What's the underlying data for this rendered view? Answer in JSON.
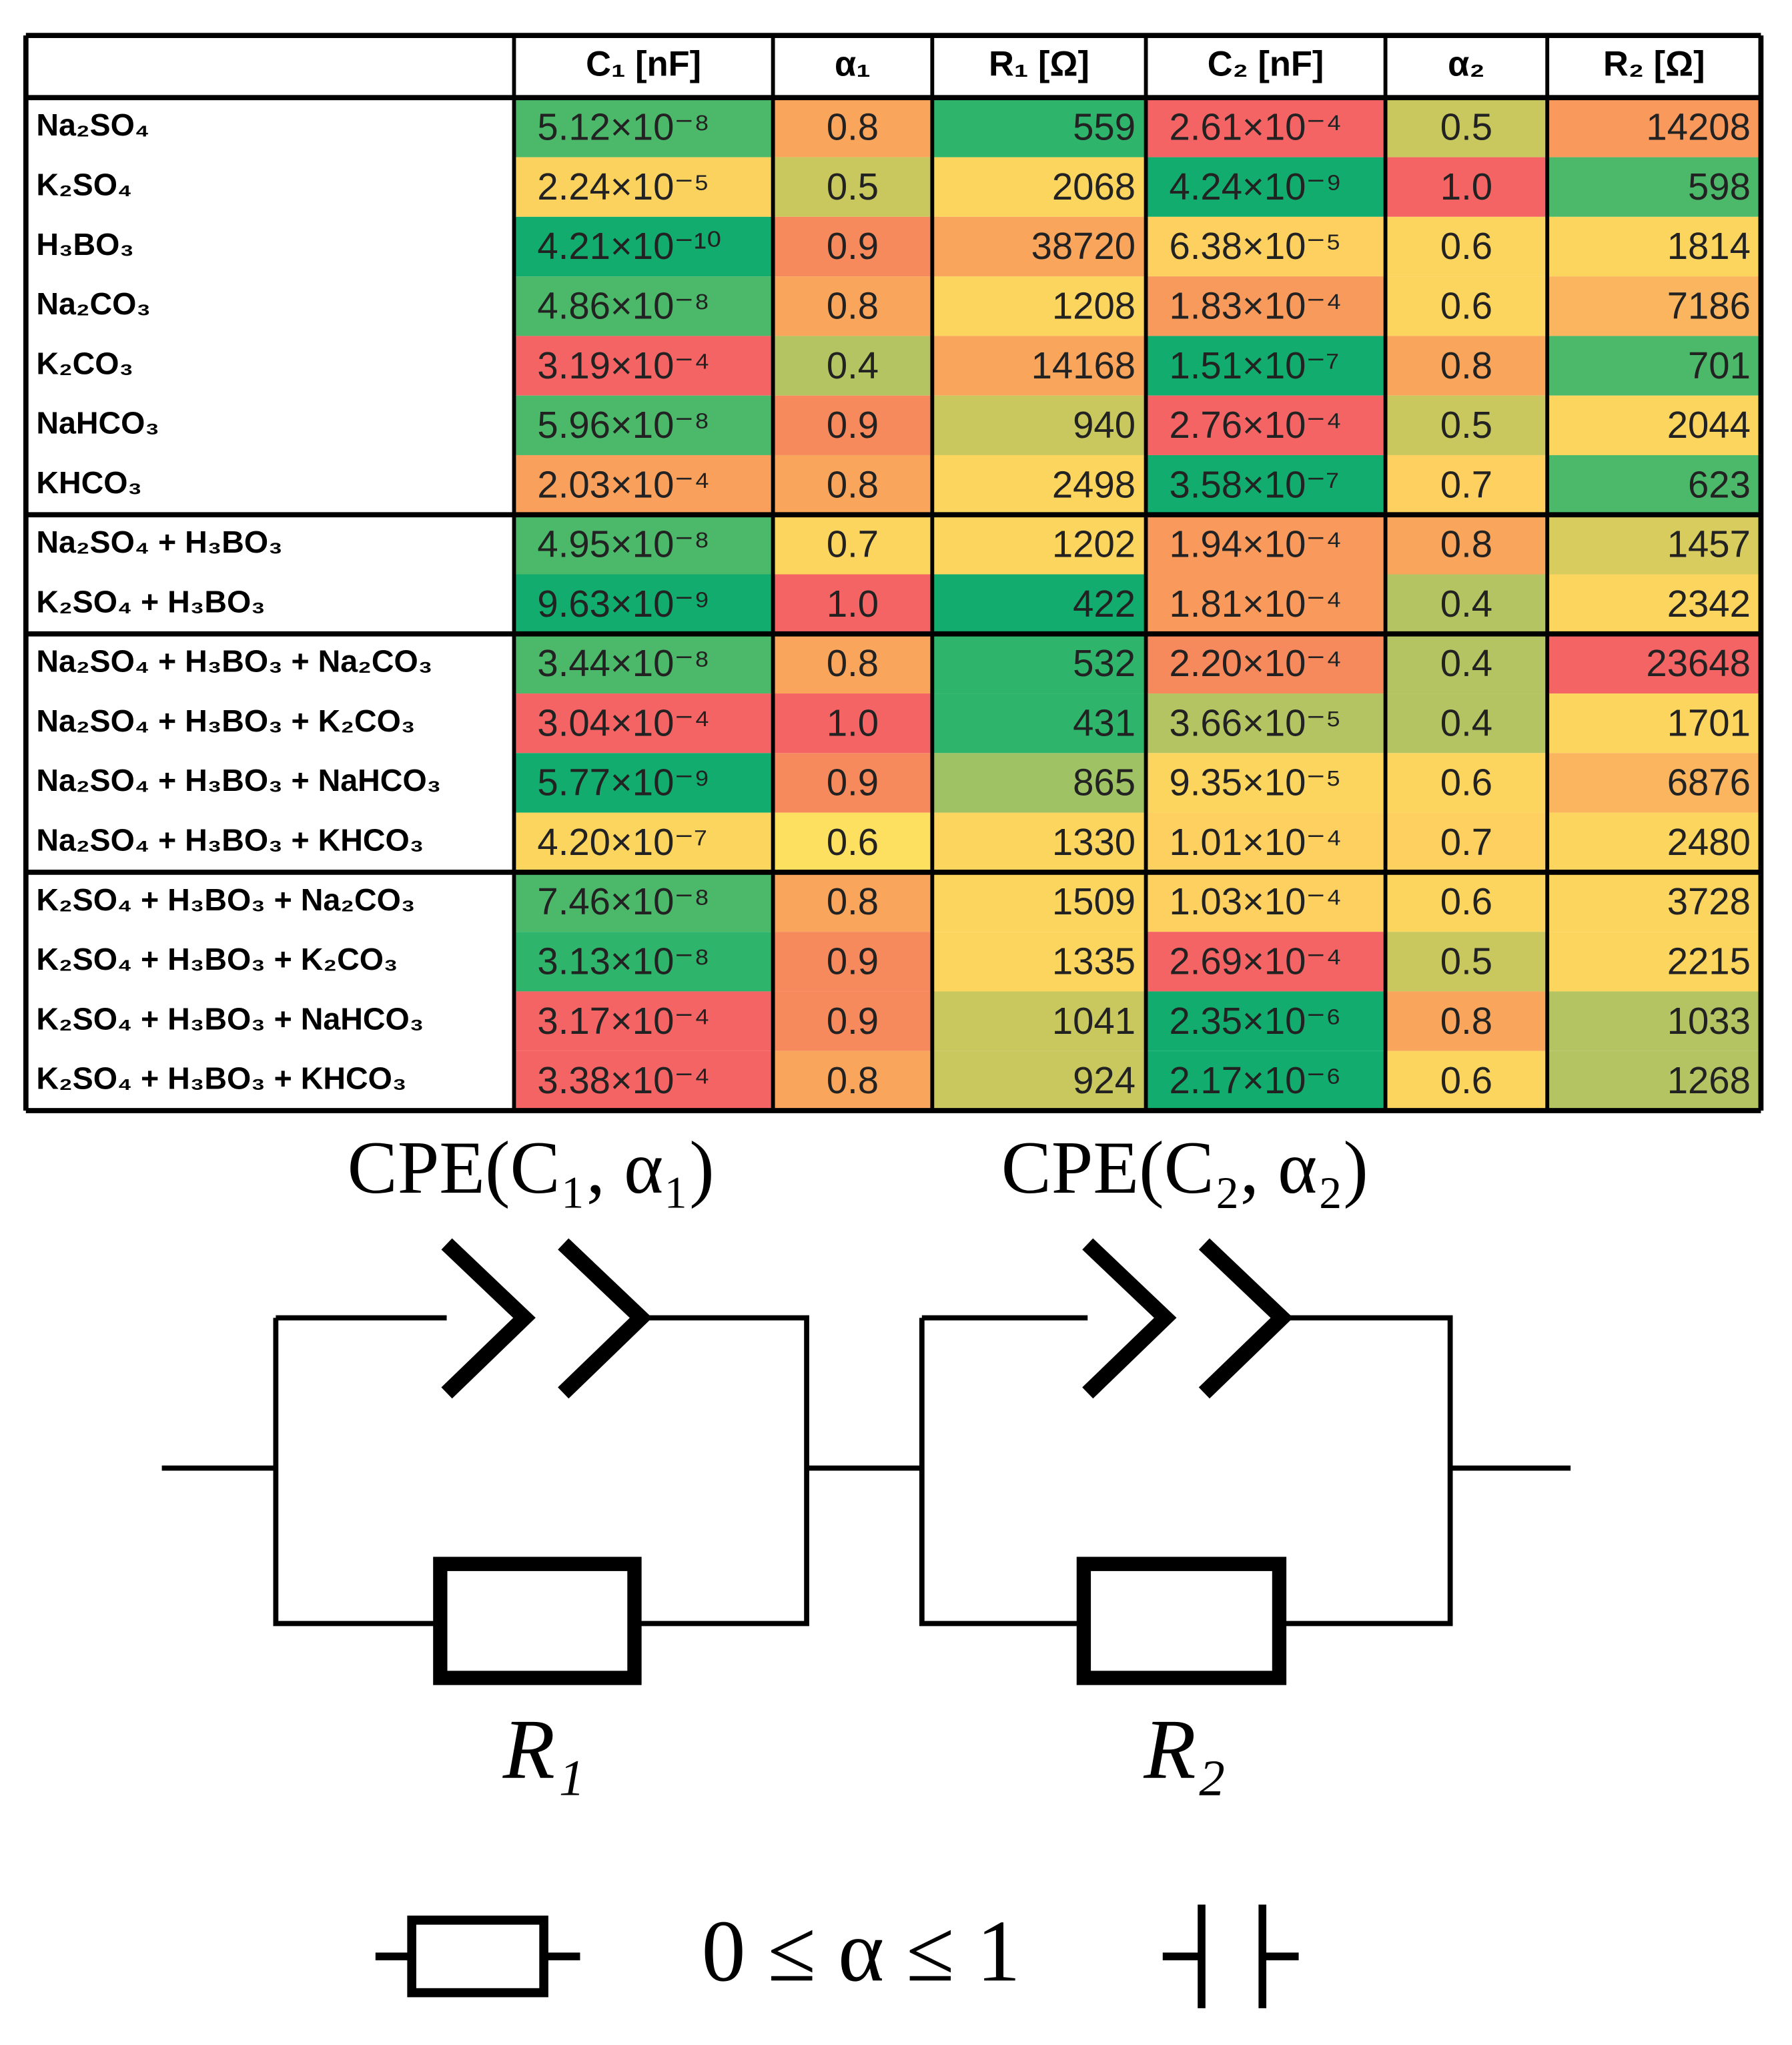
{
  "table": {
    "header": [
      "",
      "C₁ [nF]",
      "α₁",
      "R₁ [Ω]",
      "C₂ [nF]",
      "α₂",
      "R₂ [Ω]"
    ],
    "groups": [
      [
        {
          "label": "Na₂SO₄",
          "cells": [
            "5.12×10⁻⁸",
            "0.8",
            "559",
            "2.61×10⁻⁴",
            "0.5",
            "14208"
          ],
          "colors": [
            "#4cb86a",
            "#f9a55c",
            "#2fb46c",
            "#f46464",
            "#c9c85e",
            "#f99a5c"
          ]
        },
        {
          "label": "K₂SO₄",
          "cells": [
            "2.24×10⁻⁵",
            "0.5",
            "2068",
            "4.24×10⁻⁹",
            "1.0",
            "598"
          ],
          "colors": [
            "#fcd25f",
            "#c9c85e",
            "#fcd55f",
            "#12ac6e",
            "#f46464",
            "#4cb86a"
          ]
        },
        {
          "label": "H₃BO₃",
          "cells": [
            "4.21×10⁻¹⁰",
            "0.9",
            "38720",
            "6.38×10⁻⁵",
            "0.6",
            "1814"
          ],
          "colors": [
            "#12ac6e",
            "#f78a5c",
            "#f9a55c",
            "#fdd05f",
            "#fcd55f",
            "#fcd55f"
          ]
        },
        {
          "label": "Na₂CO₃",
          "cells": [
            "4.86×10⁻⁸",
            "0.8",
            "1208",
            "1.83×10⁻⁴",
            "0.6",
            "7186"
          ],
          "colors": [
            "#4cb86a",
            "#f9a55c",
            "#fcd55f",
            "#f79a5c",
            "#fcd55f",
            "#fbb55f"
          ]
        },
        {
          "label": "K₂CO₃",
          "cells": [
            "3.19×10⁻⁴",
            "0.4",
            "14168",
            "1.51×10⁻⁷",
            "0.8",
            "701"
          ],
          "colors": [
            "#f46464",
            "#b5c462",
            "#f9a55c",
            "#12ac6e",
            "#f9a55c",
            "#4cb86a"
          ]
        },
        {
          "label": "NaHCO₃",
          "cells": [
            "5.96×10⁻⁸",
            "0.9",
            "940",
            "2.76×10⁻⁴",
            "0.5",
            "2044"
          ],
          "colors": [
            "#4cb86a",
            "#f78a5c",
            "#c9c85e",
            "#f46464",
            "#c9c85e",
            "#fcd55f"
          ]
        },
        {
          "label": "KHCO₃",
          "cells": [
            "2.03×10⁻⁴",
            "0.8",
            "2498",
            "3.58×10⁻⁷",
            "0.7",
            "623"
          ],
          "colors": [
            "#f9a05c",
            "#f9a55c",
            "#fcd55f",
            "#12ac6e",
            "#fdd05f",
            "#4cb86a"
          ]
        }
      ],
      [
        {
          "label": "Na₂SO₄ + H₃BO₃",
          "cells": [
            "4.95×10⁻⁸",
            "0.7",
            "1202",
            "1.94×10⁻⁴",
            "0.8",
            "1457"
          ],
          "colors": [
            "#4cb86a",
            "#fcd55f",
            "#fcd55f",
            "#f99a5c",
            "#f9a55c",
            "#d9cc5f"
          ]
        },
        {
          "label": "K₂SO₄   + H₃BO₃",
          "cells": [
            "9.63×10⁻⁹",
            "1.0",
            "422",
            "1.81×10⁻⁴",
            "0.4",
            "2342"
          ],
          "colors": [
            "#12ac6e",
            "#f46464",
            "#12ac6e",
            "#f99a5c",
            "#b5c462",
            "#fcd55f"
          ]
        }
      ],
      [
        {
          "label": "Na₂SO₄ + H₃BO₃ + Na₂CO₃",
          "cells": [
            "3.44×10⁻⁸",
            "0.8",
            "532",
            "2.20×10⁻⁴",
            "0.4",
            "23648"
          ],
          "colors": [
            "#4cb86a",
            "#f9a55c",
            "#2fb46c",
            "#f78a5c",
            "#b5c462",
            "#f46464"
          ]
        },
        {
          "label": "Na₂SO₄ + H₃BO₃ + K₂CO₃",
          "cells": [
            "3.04×10⁻⁴",
            "1.0",
            "431",
            "3.66×10⁻⁵",
            "0.4",
            "1701"
          ],
          "colors": [
            "#f46464",
            "#f46464",
            "#2fb46c",
            "#b5c462",
            "#b5c462",
            "#fcd55f"
          ]
        },
        {
          "label": "Na₂SO₄ + H₃BO₃ + NaHCO₃",
          "cells": [
            "5.77×10⁻⁹",
            "0.9",
            "865",
            "9.35×10⁻⁵",
            "0.6",
            "6876"
          ],
          "colors": [
            "#12ac6e",
            "#f78a5c",
            "#9ec264",
            "#fcd55f",
            "#fcd55f",
            "#fbb55f"
          ]
        },
        {
          "label": "Na₂SO₄ + H₃BO₃ + KHCO₃",
          "cells": [
            "4.20×10⁻⁷",
            "0.6",
            "1330",
            "1.01×10⁻⁴",
            "0.7",
            "2480"
          ],
          "colors": [
            "#fcd55f",
            "#fde05f",
            "#fcd55f",
            "#fdd05f",
            "#fdd05f",
            "#fcd55f"
          ]
        }
      ],
      [
        {
          "label": "K₂SO₄   + H₃BO₃ + Na₂CO₃",
          "cells": [
            "7.46×10⁻⁸",
            "0.8",
            "1509",
            "1.03×10⁻⁴",
            "0.6",
            "3728"
          ],
          "colors": [
            "#4cb86a",
            "#f9a55c",
            "#fcd55f",
            "#fdd05f",
            "#fcd55f",
            "#fcd55f"
          ]
        },
        {
          "label": "K₂SO₄   + H₃BO₃ + K₂CO₃",
          "cells": [
            "3.13×10⁻⁸",
            "0.9",
            "1335",
            "2.69×10⁻⁴",
            "0.5",
            "2215"
          ],
          "colors": [
            "#2fb46c",
            "#f78a5c",
            "#fcd55f",
            "#f46464",
            "#c9c85e",
            "#fcd55f"
          ]
        },
        {
          "label": "K₂SO₄   + H₃BO₃ + NaHCO₃",
          "cells": [
            "3.17×10⁻⁴",
            "0.9",
            "1041",
            "2.35×10⁻⁶",
            "0.8",
            "1033"
          ],
          "colors": [
            "#f46464",
            "#f78a5c",
            "#c9c85e",
            "#12ac6e",
            "#f9a55c",
            "#b5c462"
          ]
        },
        {
          "label": "K₂SO₄   + H₃BO₃ + KHCO₃",
          "cells": [
            "3.38×10⁻⁴",
            "0.8",
            "924",
            "2.17×10⁻⁶",
            "0.6",
            "1268"
          ],
          "colors": [
            "#f46464",
            "#f9a55c",
            "#c9c85e",
            "#12ac6e",
            "#fcd55f",
            "#b5c462"
          ]
        }
      ]
    ]
  },
  "diagram": {
    "cpe1": "CPE(C₁, α₁)",
    "cpe2": "CPE(C₂, α₂)",
    "r1": "R₁",
    "r2": "R₂",
    "range": "0 ≤ α ≤ 1"
  }
}
